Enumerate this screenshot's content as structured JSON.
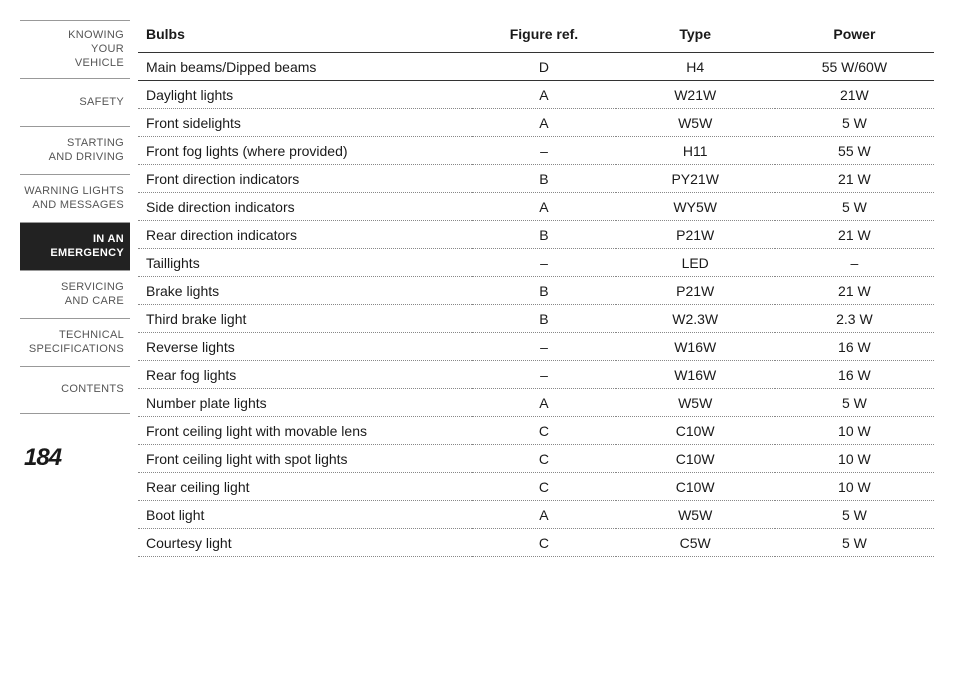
{
  "sidebar": {
    "tabs": [
      {
        "label": "KNOWING\nYOUR\nVEHICLE",
        "active": false
      },
      {
        "label": "SAFETY",
        "active": false
      },
      {
        "label": "STARTING\nAND DRIVING",
        "active": false
      },
      {
        "label": "WARNING LIGHTS\nAND MESSAGES",
        "active": false
      },
      {
        "label": "IN AN\nEMERGENCY",
        "active": true
      },
      {
        "label": "SERVICING\nAND CARE",
        "active": false
      },
      {
        "label": "TECHNICAL\nSPECIFICATIONS",
        "active": false
      },
      {
        "label": "CONTENTS",
        "active": false
      }
    ],
    "page_number": "184"
  },
  "table": {
    "headers": {
      "name": "Bulbs",
      "figure": "Figure ref.",
      "type": "Type",
      "power": "Power"
    },
    "rows": [
      {
        "name": "Main beams/Dipped beams",
        "figure": "D",
        "type": "H4",
        "power": "55 W/60W"
      },
      {
        "name": "Daylight lights",
        "figure": "A",
        "type": "W21W",
        "power": "21W"
      },
      {
        "name": "Front sidelights",
        "figure": "A",
        "type": "W5W",
        "power": "5 W"
      },
      {
        "name": "Front fog lights (where provided)",
        "figure": "–",
        "type": "H11",
        "power": "55 W"
      },
      {
        "name": "Front direction indicators",
        "figure": "B",
        "type": "PY21W",
        "power": "21 W"
      },
      {
        "name": "Side direction indicators",
        "figure": "A",
        "type": "WY5W",
        "power": "5 W"
      },
      {
        "name": "Rear direction indicators",
        "figure": "B",
        "type": "P21W",
        "power": "21 W"
      },
      {
        "name": "Taillights",
        "figure": "–",
        "type": "LED",
        "power": "–"
      },
      {
        "name": "Brake lights",
        "figure": "B",
        "type": "P21W",
        "power": "21 W"
      },
      {
        "name": "Third brake light",
        "figure": "B",
        "type": "W2.3W",
        "power": "2.3 W"
      },
      {
        "name": "Reverse lights",
        "figure": "–",
        "type": "W16W",
        "power": "16 W"
      },
      {
        "name": "Rear fog lights",
        "figure": "–",
        "type": "W16W",
        "power": "16 W"
      },
      {
        "name": "Number plate lights",
        "figure": "A",
        "type": "W5W",
        "power": "5 W"
      },
      {
        "name": "Front ceiling light with movable lens",
        "figure": "C",
        "type": "C10W",
        "power": "10 W"
      },
      {
        "name": "Front ceiling light with spot lights",
        "figure": "C",
        "type": "C10W",
        "power": "10 W"
      },
      {
        "name": "Rear ceiling light",
        "figure": "C",
        "type": "C10W",
        "power": "10 W"
      },
      {
        "name": "Boot light",
        "figure": "A",
        "type": "W5W",
        "power": "5 W"
      },
      {
        "name": "Courtesy light",
        "figure": "C",
        "type": "C5W",
        "power": "5 W"
      }
    ]
  }
}
